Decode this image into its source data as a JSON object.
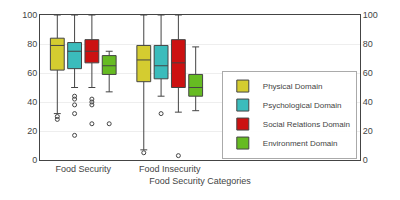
{
  "chart_data": {
    "type": "box",
    "xlabel": "Food Security Categories",
    "categories": [
      "Food Security",
      "Food Insecurity"
    ],
    "ylim": [
      0,
      100
    ],
    "yticks": [
      0,
      20,
      40,
      60,
      80,
      100
    ],
    "y2lim": [
      0,
      100
    ],
    "y2ticks": [
      0,
      20,
      40,
      60,
      80,
      100
    ],
    "grid": true,
    "legend": "lower right",
    "series": [
      {
        "name": "Physical Domain",
        "color": "#d4cc30",
        "q1": [
          62,
          54
        ],
        "median": [
          79,
          69
        ],
        "q3": [
          84,
          79
        ],
        "whisker_low": [
          32,
          7
        ],
        "whisker_high": [
          100,
          100
        ],
        "outliers": [
          [
            30,
            28
          ],
          [
            5
          ]
        ]
      },
      {
        "name": "Psychological Domain",
        "color": "#3bbcbc",
        "q1": [
          63,
          56
        ],
        "median": [
          75,
          65
        ],
        "q3": [
          81,
          79
        ],
        "whisker_low": [
          50,
          44
        ],
        "whisker_high": [
          100,
          100
        ],
        "outliers": [
          [
            44,
            42,
            38,
            32,
            17
          ],
          [
            32
          ]
        ]
      },
      {
        "name": "Social Relations Domain",
        "color": "#cc1111",
        "q1": [
          67,
          50
        ],
        "median": [
          75,
          67
        ],
        "q3": [
          83,
          83
        ],
        "whisker_low": [
          50,
          33
        ],
        "whisker_high": [
          100,
          100
        ],
        "outliers": [
          [
            42,
            40,
            38,
            25
          ],
          [
            3
          ]
        ]
      },
      {
        "name": "Environment Domain",
        "color": "#66bb22",
        "q1": [
          59,
          44
        ],
        "median": [
          65,
          50
        ],
        "q3": [
          72,
          59
        ],
        "whisker_low": [
          47,
          34
        ],
        "whisker_high": [
          75,
          78
        ],
        "outliers": [
          [
            25
          ],
          []
        ]
      }
    ]
  }
}
